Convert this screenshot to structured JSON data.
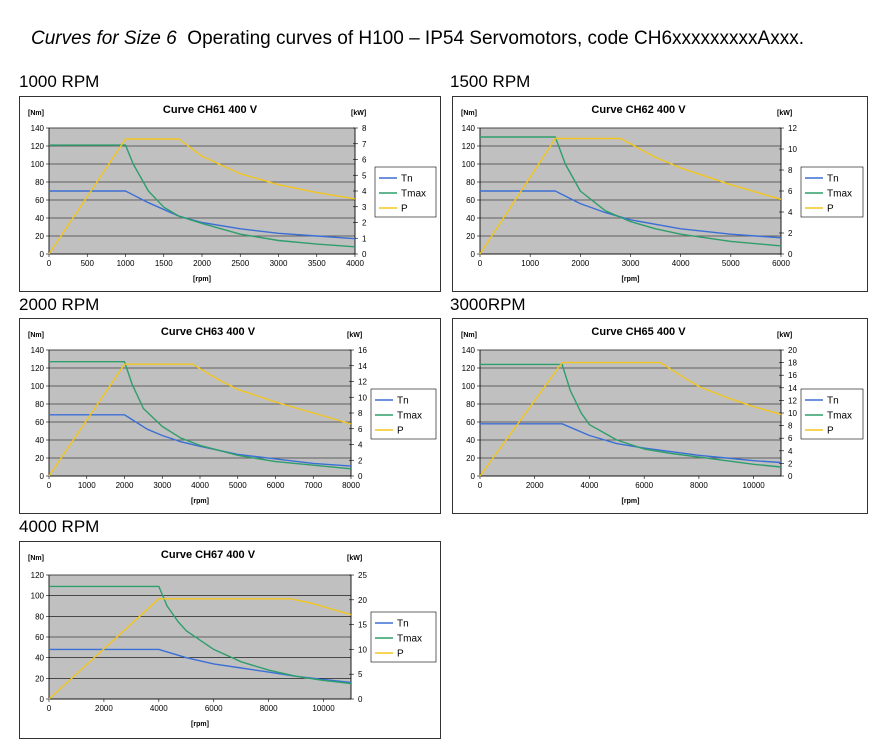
{
  "header": {
    "italic_part": "Curves for Size 6",
    "rest": "Operating curves of H100 – IP54 Servomotors, code CH6xxxxxxxxxAxxx."
  },
  "chart_data": [
    {
      "type": "line",
      "speed_label": "1000 RPM",
      "title": "Curve CH61 400 V",
      "ylabel": "[Nm]",
      "y2label": "[kW]",
      "xlabel": "[rpm]",
      "xlim": [
        0,
        4000
      ],
      "xticks": [
        0,
        500,
        1000,
        1500,
        2000,
        2500,
        3000,
        3500,
        4000
      ],
      "ylim": [
        0,
        140
      ],
      "yticks": [
        0,
        20,
        40,
        60,
        80,
        100,
        120,
        140
      ],
      "y2lim": [
        0,
        8
      ],
      "y2ticks": [
        0,
        1,
        2,
        3,
        4,
        5,
        6,
        7,
        8
      ],
      "grid": true,
      "legend_position": "right",
      "series": [
        {
          "name": "Tn",
          "color": "#3b6fd6",
          "axis": "left",
          "x": [
            0,
            1000,
            1300,
            1700,
            2000,
            2500,
            3000,
            3500,
            4000
          ],
          "y": [
            70,
            70,
            57,
            42,
            35,
            28,
            23,
            20,
            17
          ]
        },
        {
          "name": "Tmax",
          "color": "#2e9e6b",
          "axis": "left",
          "x": [
            0,
            1000,
            1100,
            1300,
            1500,
            1700,
            2000,
            2500,
            3000,
            3500,
            4000
          ],
          "y": [
            121,
            121,
            100,
            70,
            52,
            42,
            34,
            22,
            15,
            11,
            8
          ]
        },
        {
          "name": "P",
          "color": "#f2c61f",
          "axis": "right",
          "x": [
            0,
            1000,
            1700,
            2000,
            2500,
            3000,
            3500,
            4000
          ],
          "y": [
            0,
            7.3,
            7.3,
            6.2,
            5.1,
            4.4,
            3.9,
            3.5
          ]
        }
      ]
    },
    {
      "type": "line",
      "speed_label": "1500 RPM",
      "title": "Curve CH62 400 V",
      "ylabel": "[Nm]",
      "y2label": "[kW]",
      "xlabel": "[rpm]",
      "xlim": [
        0,
        6000
      ],
      "xticks": [
        0,
        1000,
        2000,
        3000,
        4000,
        5000,
        6000
      ],
      "ylim": [
        0,
        140
      ],
      "yticks": [
        0,
        20,
        40,
        60,
        80,
        100,
        120,
        140
      ],
      "y2lim": [
        0,
        12
      ],
      "y2ticks": [
        0,
        2,
        4,
        6,
        8,
        10,
        12
      ],
      "grid": true,
      "legend_position": "right",
      "series": [
        {
          "name": "Tn",
          "color": "#3b6fd6",
          "axis": "left",
          "x": [
            0,
            1500,
            2000,
            2500,
            3000,
            4000,
            5000,
            6000
          ],
          "y": [
            70,
            70,
            56,
            46,
            38,
            28,
            22,
            18
          ]
        },
        {
          "name": "Tmax",
          "color": "#2e9e6b",
          "axis": "left",
          "x": [
            0,
            1500,
            1700,
            2000,
            2500,
            3000,
            3500,
            4000,
            5000,
            6000
          ],
          "y": [
            130,
            130,
            100,
            70,
            48,
            36,
            28,
            22,
            14,
            9
          ]
        },
        {
          "name": "P",
          "color": "#f2c61f",
          "axis": "right",
          "x": [
            0,
            1500,
            2800,
            3500,
            4000,
            5000,
            6000
          ],
          "y": [
            0,
            11,
            11,
            9.2,
            8.2,
            6.6,
            5.2
          ]
        }
      ]
    },
    {
      "type": "line",
      "speed_label": "2000 RPM",
      "title": "Curve CH63 400 V",
      "ylabel": "[Nm]",
      "y2label": "[kW]",
      "xlabel": "[rpm]",
      "xlim": [
        0,
        8000
      ],
      "xticks": [
        0,
        1000,
        2000,
        3000,
        4000,
        5000,
        6000,
        7000,
        8000
      ],
      "ylim": [
        0,
        140
      ],
      "yticks": [
        0,
        20,
        40,
        60,
        80,
        100,
        120,
        140
      ],
      "y2lim": [
        0,
        16
      ],
      "y2ticks": [
        0,
        2,
        4,
        6,
        8,
        10,
        12,
        14,
        16
      ],
      "grid": true,
      "legend_position": "right",
      "series": [
        {
          "name": "Tn",
          "color": "#3b6fd6",
          "axis": "left",
          "x": [
            0,
            2000,
            2600,
            3000,
            3500,
            4000,
            5000,
            6000,
            7000,
            8000
          ],
          "y": [
            68,
            68,
            52,
            45,
            38,
            33,
            24,
            19,
            14,
            11
          ]
        },
        {
          "name": "Tmax",
          "color": "#2e9e6b",
          "axis": "left",
          "x": [
            0,
            2000,
            2200,
            2500,
            3000,
            3500,
            4000,
            5000,
            6000,
            7000,
            8000
          ],
          "y": [
            127,
            127,
            102,
            75,
            55,
            42,
            34,
            23,
            16,
            12,
            8
          ]
        },
        {
          "name": "P",
          "color": "#f2c61f",
          "axis": "right",
          "x": [
            0,
            2000,
            3800,
            4500,
            5000,
            6000,
            7000,
            8000
          ],
          "y": [
            0,
            14.2,
            14.2,
            12.2,
            11,
            9.4,
            8,
            6.6
          ]
        }
      ]
    },
    {
      "type": "line",
      "speed_label": "3000RPM",
      "title": "Curve CH65 400 V",
      "ylabel": "[Nm]",
      "y2label": "[kW]",
      "xlabel": "[rpm]",
      "xlim": [
        0,
        11000
      ],
      "xticks": [
        0,
        2000,
        4000,
        6000,
        8000,
        10000
      ],
      "ylim": [
        0,
        140
      ],
      "yticks": [
        0,
        20,
        40,
        60,
        80,
        100,
        120,
        140
      ],
      "y2lim": [
        0,
        20
      ],
      "y2ticks": [
        0,
        2,
        4,
        6,
        8,
        10,
        12,
        14,
        16,
        18,
        20
      ],
      "grid": true,
      "legend_position": "right",
      "series": [
        {
          "name": "Tn",
          "color": "#3b6fd6",
          "axis": "left",
          "x": [
            0,
            3000,
            4000,
            5000,
            6000,
            7000,
            8000,
            9000,
            10000,
            11000
          ],
          "y": [
            58,
            58,
            45,
            36,
            31,
            27,
            23,
            20,
            17,
            15
          ]
        },
        {
          "name": "Tmax",
          "color": "#2e9e6b",
          "axis": "left",
          "x": [
            0,
            3000,
            3300,
            3700,
            4000,
            5000,
            6000,
            7000,
            8000,
            9000,
            10000,
            11000
          ],
          "y": [
            124,
            124,
            95,
            70,
            57,
            40,
            30,
            25,
            21,
            17,
            13,
            10
          ]
        },
        {
          "name": "P",
          "color": "#f2c61f",
          "axis": "right",
          "x": [
            0,
            3000,
            6600,
            7500,
            8000,
            9000,
            10000,
            11000
          ],
          "y": [
            0,
            18,
            18,
            15.5,
            14.2,
            12.5,
            11,
            9.8
          ]
        }
      ]
    },
    {
      "type": "line",
      "speed_label": "4000 RPM",
      "title": "Curve CH67 400 V",
      "ylabel": "[Nm]",
      "y2label": "[kW]",
      "xlabel": "[rpm]",
      "xlim": [
        0,
        11000
      ],
      "xticks": [
        0,
        2000,
        4000,
        6000,
        8000,
        10000
      ],
      "ylim": [
        0,
        120
      ],
      "yticks": [
        0,
        20,
        40,
        60,
        80,
        100,
        120
      ],
      "y2lim": [
        0,
        25
      ],
      "y2ticks": [
        0,
        5,
        10,
        15,
        20,
        25
      ],
      "grid": true,
      "legend_position": "right",
      "series": [
        {
          "name": "Tn",
          "color": "#3b6fd6",
          "axis": "left",
          "x": [
            0,
            4000,
            5000,
            6000,
            7000,
            8000,
            9000,
            10000,
            11000
          ],
          "y": [
            48,
            48,
            40,
            34,
            30,
            26,
            22,
            19,
            16
          ]
        },
        {
          "name": "Tmax",
          "color": "#2e9e6b",
          "axis": "left",
          "x": [
            0,
            4000,
            4300,
            4700,
            5000,
            6000,
            7000,
            8000,
            9000,
            10000,
            11000
          ],
          "y": [
            109,
            109,
            90,
            75,
            66,
            48,
            36,
            28,
            22,
            18,
            15
          ]
        },
        {
          "name": "P",
          "color": "#f2c61f",
          "axis": "right",
          "x": [
            0,
            4000,
            8800,
            9500,
            10000,
            11000
          ],
          "y": [
            0,
            20.2,
            20.2,
            19.4,
            18.6,
            17
          ]
        }
      ]
    }
  ]
}
